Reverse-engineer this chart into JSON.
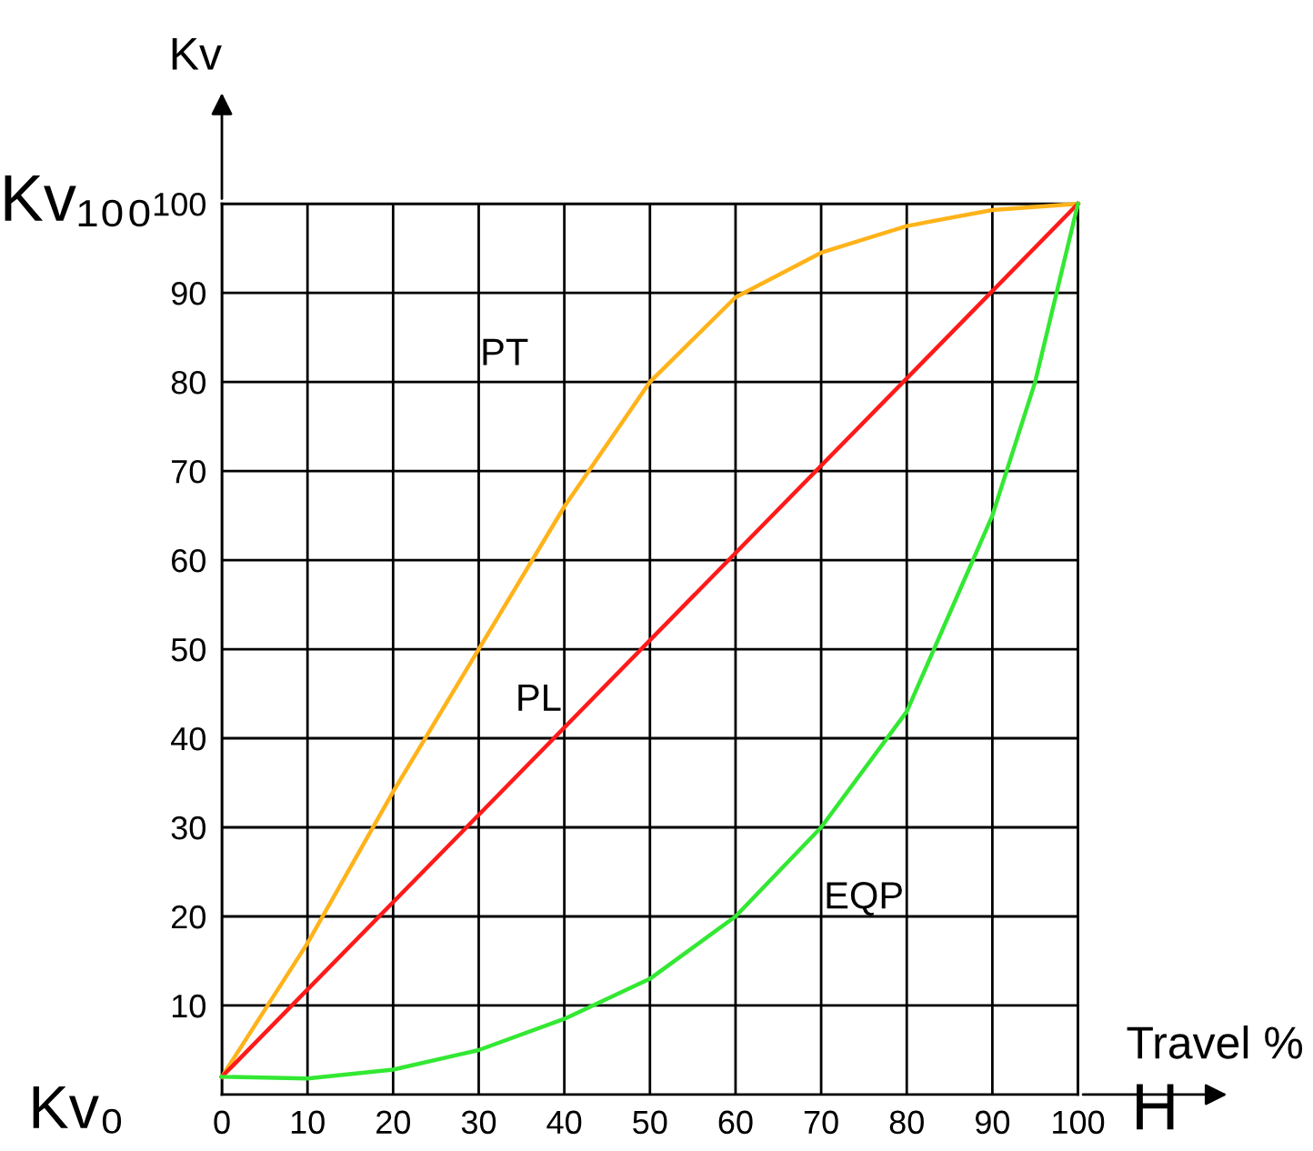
{
  "chart_data": {
    "type": "line",
    "ylabel": "Kv",
    "xlabel": "Travel %",
    "annotations": [
      "Kv₁₀₀",
      "Kv₀",
      "H"
    ],
    "series": [
      {
        "name": "PT",
        "color": "#ffb31a",
        "x": [
          0,
          10,
          20,
          30,
          40,
          50,
          60,
          70,
          80,
          90,
          100
        ],
        "values": [
          2,
          17,
          34,
          50,
          66,
          80,
          89.5,
          94.5,
          97.5,
          99.3,
          100
        ]
      },
      {
        "name": "PL",
        "color": "#ff1a1a",
        "x": [
          0,
          100
        ],
        "values": [
          2,
          100
        ]
      },
      {
        "name": "EQP",
        "color": "#33e833",
        "x": [
          0,
          10,
          20,
          30,
          40,
          50,
          60,
          70,
          80,
          90,
          95,
          100
        ],
        "values": [
          2,
          1.8,
          2.8,
          5,
          8.5,
          13,
          20,
          30,
          43,
          65,
          80,
          100
        ]
      }
    ],
    "xlim": [
      0,
      100
    ],
    "ylim": [
      0,
      100
    ],
    "xticks": [
      0,
      10,
      20,
      30,
      40,
      50,
      60,
      70,
      80,
      90,
      100
    ],
    "yticks": [
      10,
      20,
      30,
      40,
      50,
      60,
      70,
      80,
      90,
      100
    ],
    "grid": true,
    "legend": false,
    "marker": "none",
    "line_style": "solid"
  }
}
